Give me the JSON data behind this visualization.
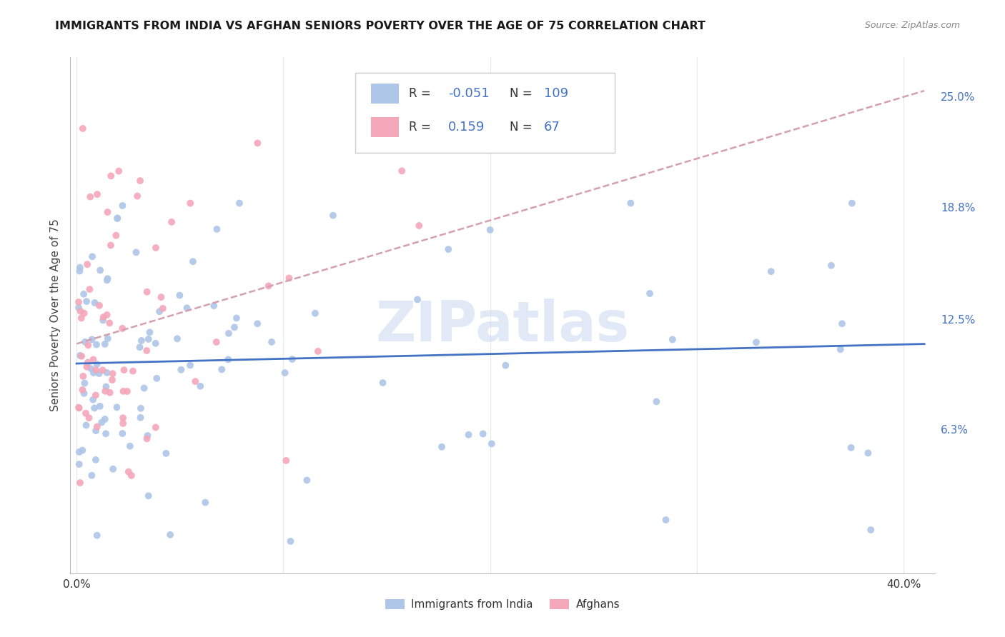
{
  "title": "IMMIGRANTS FROM INDIA VS AFGHAN SENIORS POVERTY OVER THE AGE OF 75 CORRELATION CHART",
  "source": "Source: ZipAtlas.com",
  "ylabel": "Seniors Poverty Over the Age of 75",
  "india_R": -0.051,
  "india_N": 109,
  "afghan_R": 0.159,
  "afghan_N": 67,
  "india_color": "#aec6e8",
  "afghan_color": "#f4a7b9",
  "india_line_color": "#4472c4",
  "afghan_line_color": "#d4a0b0",
  "watermark": "ZIPatlas",
  "xlim": [
    -0.003,
    0.415
  ],
  "ylim": [
    -0.018,
    0.272
  ],
  "ytick_vals": [
    0.0,
    0.063,
    0.125,
    0.188,
    0.25
  ],
  "ytick_labels": [
    "",
    "6.3%",
    "12.5%",
    "18.8%",
    "25.0%"
  ],
  "xtick_vals": [
    0.0,
    0.1,
    0.2,
    0.3,
    0.4
  ],
  "xtick_labels": [
    "0.0%",
    "",
    "",
    "",
    "40.0%"
  ]
}
